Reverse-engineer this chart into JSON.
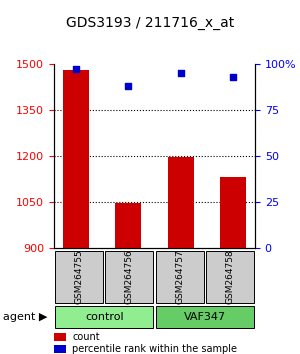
{
  "title": "GDS3193 / 211716_x_at",
  "samples": [
    "GSM264755",
    "GSM264756",
    "GSM264757",
    "GSM264758"
  ],
  "groups": [
    "control",
    "control",
    "VAF347",
    "VAF347"
  ],
  "group_labels": [
    "control",
    "VAF347"
  ],
  "group_colors": [
    "#90EE90",
    "#4CBB47"
  ],
  "bar_values": [
    1480,
    1047,
    1197,
    1130
  ],
  "percentile_values": [
    97,
    88,
    95,
    93
  ],
  "bar_color": "#CC0000",
  "dot_color": "#0000CC",
  "ylim_left": [
    900,
    1500
  ],
  "ylim_right": [
    0,
    100
  ],
  "yticks_left": [
    900,
    1050,
    1200,
    1350,
    1500
  ],
  "yticks_right": [
    0,
    25,
    50,
    75,
    100
  ],
  "ytick_labels_right": [
    "0",
    "25",
    "50",
    "75",
    "100%"
  ],
  "legend_count": "count",
  "legend_pct": "percentile rank within the sample",
  "agent_label": "agent"
}
